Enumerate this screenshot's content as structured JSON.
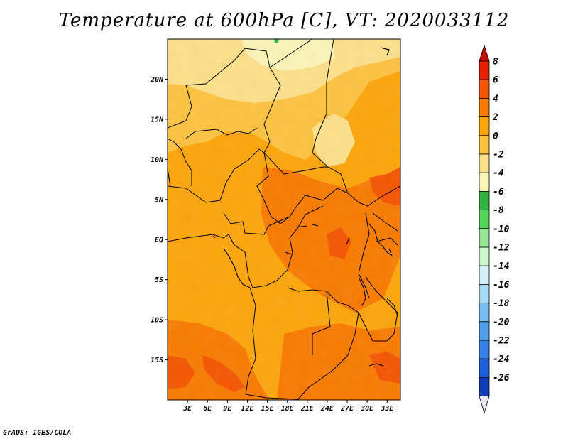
{
  "title": "Temperature at 600hPa [C], VT: 2020033112",
  "credit": "GrADS: IGES/COLA",
  "map": {
    "lat_labels": [
      "20N",
      "15N",
      "10N",
      "5N",
      "EQ",
      "5S",
      "10S",
      "15S"
    ],
    "lat_values": [
      20,
      15,
      10,
      5,
      0,
      -5,
      -10,
      -15
    ],
    "lon_labels": [
      "3E",
      "6E",
      "9E",
      "12E",
      "15E",
      "18E",
      "21E",
      "24E",
      "27E",
      "30E",
      "33E"
    ],
    "lon_values": [
      3,
      6,
      9,
      12,
      15,
      18,
      21,
      24,
      27,
      30,
      33
    ],
    "extent": {
      "lon_min": 0,
      "lon_max": 35,
      "lat_min": -20,
      "lat_max": 25
    }
  },
  "colorbar": {
    "labels": [
      "8",
      "6",
      "4",
      "2",
      "0",
      "-2",
      "-4",
      "-6",
      "-8",
      "-10",
      "-12",
      "-14",
      "-16",
      "-18",
      "-20",
      "-22",
      "-24",
      "-26"
    ],
    "colors": [
      "#e42000",
      "#f45500",
      "#f97a00",
      "#fda50a",
      "#fdc340",
      "#fce08a",
      "#fbf5b8",
      "#2fb340",
      "#55d45a",
      "#96e896",
      "#cbf7cb",
      "#d4f0fb",
      "#a4dbf7",
      "#78bdf2",
      "#4e9fea",
      "#3380e6",
      "#1b5fda",
      "#0f3cb8"
    ],
    "top_cap_color": "#c81000",
    "bottom_cap_color": "#0a1f7a",
    "bottom_tri_color": "#e6e6fa"
  }
}
